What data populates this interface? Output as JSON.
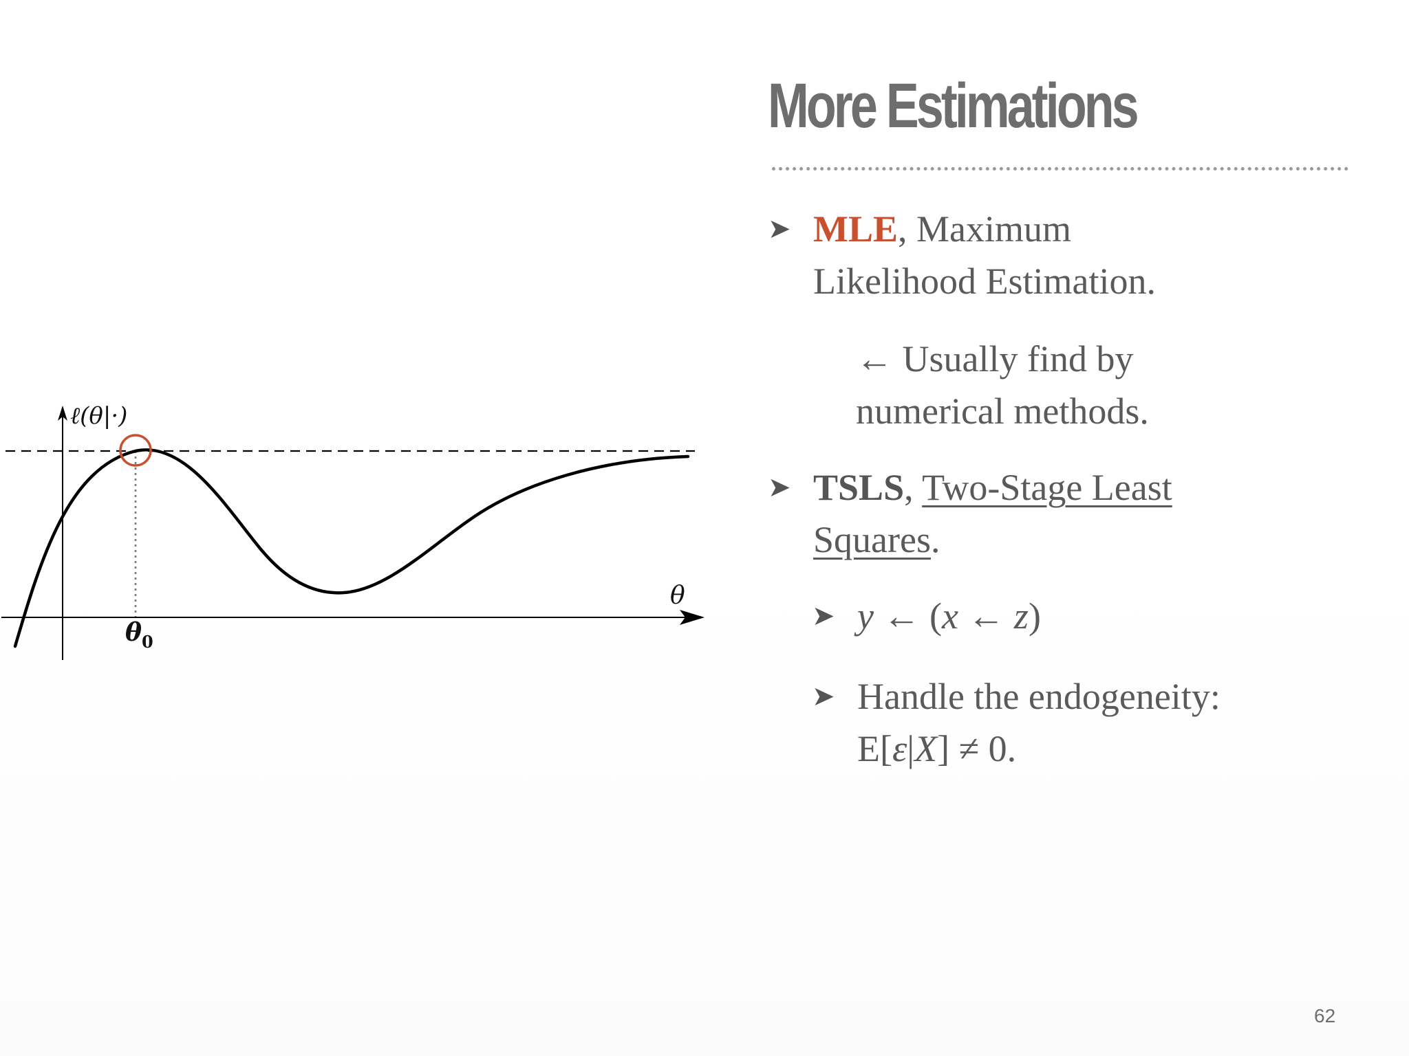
{
  "slide": {
    "title": "More Estimations",
    "page_number": "62"
  },
  "bullets": {
    "mle": {
      "term": "MLE",
      "comma": ",",
      "rest": " Maximum Likelihood Estimation."
    },
    "mle_note": {
      "arrow": "←",
      "text": " Usually find by numerical methods."
    },
    "tsls": {
      "term": "TSLS",
      "comma": ", ",
      "link": "Two-Stage Least Squares",
      "end": "."
    },
    "tsls_sub1": {
      "marker": "➤",
      "y": "y",
      "arrow1": " ← (",
      "x": "x",
      "arrow2": " ← ",
      "z": "z",
      "close": ")"
    },
    "tsls_sub2": {
      "marker": "➤",
      "line1": "Handle the endogeneity:",
      "e_open": "E[",
      "eps": "ε",
      "bar": "|",
      "X": "X",
      "e_close": "] ≠ 0."
    },
    "marker": "➤"
  },
  "figure": {
    "y_axis_label": "ℓ(θ|·)",
    "x_axis_label": "θ",
    "theta0_symbol": "θ",
    "theta0_subscript": "0",
    "highlight_color": "#c8502f",
    "curve_color": "#000000"
  }
}
